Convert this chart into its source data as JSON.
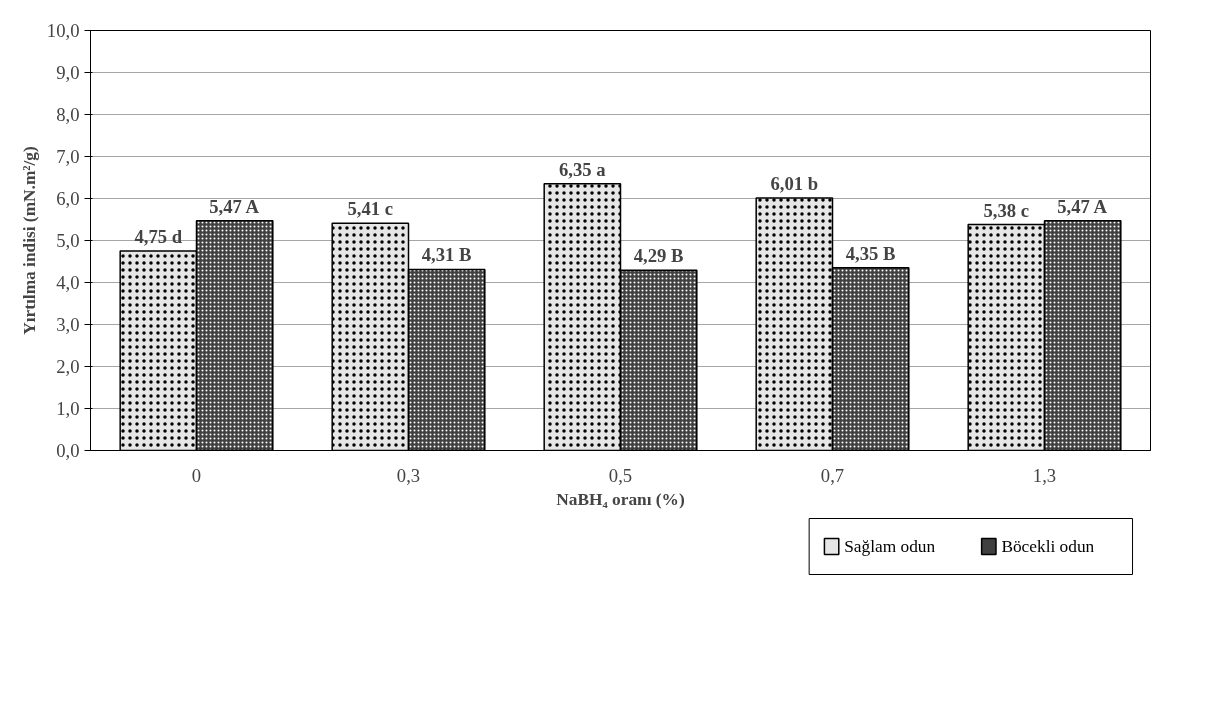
{
  "chart_data": {
    "type": "bar",
    "xlabel": "NaBH₄ oranı (%)",
    "ylabel": "Yırtılma indisi (mN.m²/g)",
    "categories": [
      "0",
      "0,3",
      "0,5",
      "0,7",
      "1,3"
    ],
    "series": [
      {
        "name": "Sağlam odun",
        "color": "#e6e6e6",
        "values": [
          4.75,
          5.41,
          6.35,
          6.01,
          5.38
        ],
        "value_labels": [
          "4,75 d",
          "5,41 c",
          "6,35 a",
          "6,01 b",
          "5,38 c"
        ]
      },
      {
        "name": "Böcekli odun",
        "color": "#404040",
        "values": [
          5.47,
          4.31,
          4.29,
          4.35,
          5.47
        ],
        "value_labels": [
          "5,47 A",
          "4,31 B",
          "4,29 B",
          "4,35 B",
          "5,47 A"
        ]
      }
    ],
    "ylim": [
      0,
      10
    ],
    "yticks": [
      {
        "value": 0,
        "label": "0,0"
      },
      {
        "value": 1,
        "label": "1,0"
      },
      {
        "value": 2,
        "label": "2,0"
      },
      {
        "value": 3,
        "label": "3,0"
      },
      {
        "value": 4,
        "label": "4,0"
      },
      {
        "value": 5,
        "label": "5,0"
      },
      {
        "value": 6,
        "label": "6,0"
      },
      {
        "value": 7,
        "label": "7,0"
      },
      {
        "value": 8,
        "label": "8,0"
      },
      {
        "value": 9,
        "label": "9,0"
      },
      {
        "value": 10,
        "label": "10,0"
      }
    ],
    "grid": "y",
    "legend": "bottom right"
  }
}
